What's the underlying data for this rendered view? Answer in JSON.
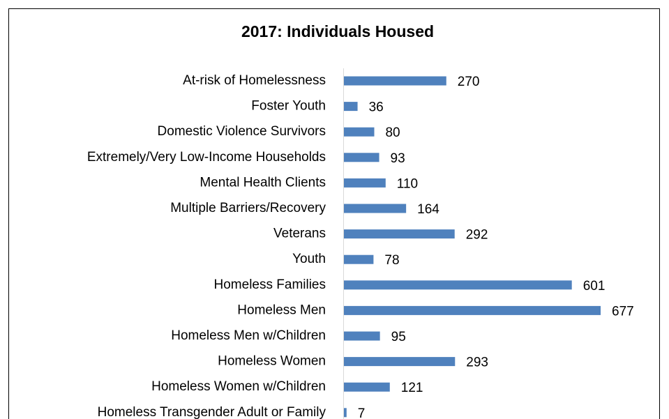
{
  "chart_data": {
    "type": "bar",
    "orientation": "horizontal",
    "title": "2017: Individuals Housed",
    "categories": [
      "At-risk of Homelessness",
      "Foster Youth",
      "Domestic Violence Survivors",
      "Extremely/Very Low-Income Households",
      "Mental Health Clients",
      "Multiple Barriers/Recovery",
      "Veterans",
      "Youth",
      "Homeless Families",
      "Homeless Men",
      "Homeless Men w/Children",
      "Homeless Women",
      "Homeless Women w/Children",
      "Homeless Transgender Adult or Family"
    ],
    "values": [
      270,
      36,
      80,
      93,
      110,
      164,
      292,
      78,
      601,
      677,
      95,
      293,
      121,
      7
    ],
    "color": "#4f81bd"
  }
}
